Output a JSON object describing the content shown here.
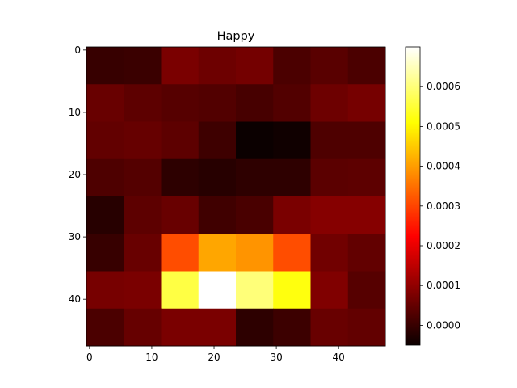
{
  "chart_data": {
    "type": "heatmap",
    "title": "Happy",
    "colormap": "hot",
    "x_range": [
      -0.5,
      47.5
    ],
    "y_range": [
      -0.5,
      47.5
    ],
    "cell_size": 6,
    "x_ticks": [
      0,
      10,
      20,
      30,
      40
    ],
    "y_ticks": [
      0,
      10,
      20,
      30,
      40
    ],
    "colorbar": {
      "range": [
        -5e-05,
        0.0007
      ],
      "ticks": [
        0.0,
        0.0001,
        0.0002,
        0.0003,
        0.0004,
        0.0005,
        0.0006
      ],
      "tick_labels": [
        "0.0000",
        "0.0001",
        "0.0002",
        "0.0003",
        "0.0004",
        "0.0005",
        "0.0006"
      ]
    },
    "values": [
      [
        0.0,
        3e-06,
        7.5e-05,
        6e-05,
        6.8e-05,
        2.2e-05,
        3.8e-05,
        2.2e-05
      ],
      [
        5.5e-05,
        4.2e-05,
        3.5e-05,
        3e-05,
        1.8e-05,
        3e-05,
        6e-05,
        7e-05
      ],
      [
        4.8e-05,
        5.2e-05,
        4.2e-05,
        8e-06,
        -5e-05,
        -4.4e-05,
        2.5e-05,
        2.5e-05
      ],
      [
        2.5e-05,
        3.2e-05,
        -1.2e-05,
        -1.8e-05,
        -1e-05,
        -1e-05,
        4e-05,
        4.2e-05
      ],
      [
        -1.8e-05,
        4.2e-05,
        5.5e-05,
        1e-05,
        2e-05,
        7.5e-05,
        8.8e-05,
        8.8e-05
      ],
      [
        0.0,
        5.5e-05,
        0.00031,
        0.00041,
        0.00039,
        0.00031,
        6.5e-05,
        4.8e-05
      ],
      [
        7.2e-05,
        7.5e-05,
        0.00056,
        0.0007,
        0.0006,
        0.00052,
        8.2e-05,
        3.5e-05
      ],
      [
        2.2e-05,
        5.2e-05,
        7.5e-05,
        7.5e-05,
        -1.2e-05,
        5e-06,
        5.5e-05,
        4.8e-05
      ]
    ]
  }
}
